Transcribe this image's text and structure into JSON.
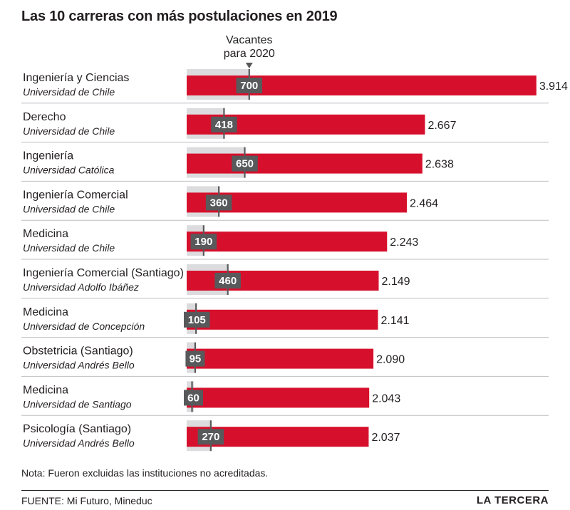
{
  "chart_data": {
    "type": "bar",
    "title": "Las 10 carreras con más postulaciones en 2019",
    "annotation_label": "Vacantes para 2020",
    "categories": [
      {
        "career": "Ingeniería y Ciencias",
        "university": "Universidad de Chile"
      },
      {
        "career": "Derecho",
        "university": "Universidad de Chile"
      },
      {
        "career": "Ingeniería",
        "university": "Universidad Católica"
      },
      {
        "career": "Ingeniería Comercial",
        "university": "Universidad de Chile"
      },
      {
        "career": "Medicina",
        "university": "Universidad de Chile"
      },
      {
        "career": "Ingeniería Comercial (Santiago)",
        "university": "Universidad Adolfo Ibáñez"
      },
      {
        "career": "Medicina",
        "university": "Universidad de Concepción"
      },
      {
        "career": "Obstetricia (Santiago)",
        "university": "Universidad Andrés Bello"
      },
      {
        "career": "Medicina",
        "university": "Universidad de Santiago"
      },
      {
        "career": "Psicología (Santiago)",
        "university": "Universidad Andrés Bello"
      }
    ],
    "series": [
      {
        "values": [
          3914,
          2667,
          2638,
          2464,
          2243,
          2149,
          2141,
          2090,
          2043,
          2037
        ],
        "labels": [
          "3.914",
          "2.667",
          "2.638",
          "2.464",
          "2.243",
          "2.149",
          "2.141",
          "2.090",
          "2.043",
          "2.037"
        ]
      },
      {
        "values": [
          700,
          418,
          650,
          360,
          190,
          460,
          105,
          95,
          60,
          270
        ],
        "labels": [
          "700",
          "418",
          "650",
          "360",
          "190",
          "460",
          "105",
          "95",
          "60",
          "270"
        ]
      }
    ],
    "colors": {
      "bar": "#d6102c",
      "background_bar": "#dcdcde",
      "marker": "#58595b",
      "text": "#231f20"
    }
  },
  "note": "Nota: Fueron excluidas las instituciones no acreditadas.",
  "source": "FUENTE: Mi Futuro, Mineduc",
  "brand": "LA TERCERA"
}
